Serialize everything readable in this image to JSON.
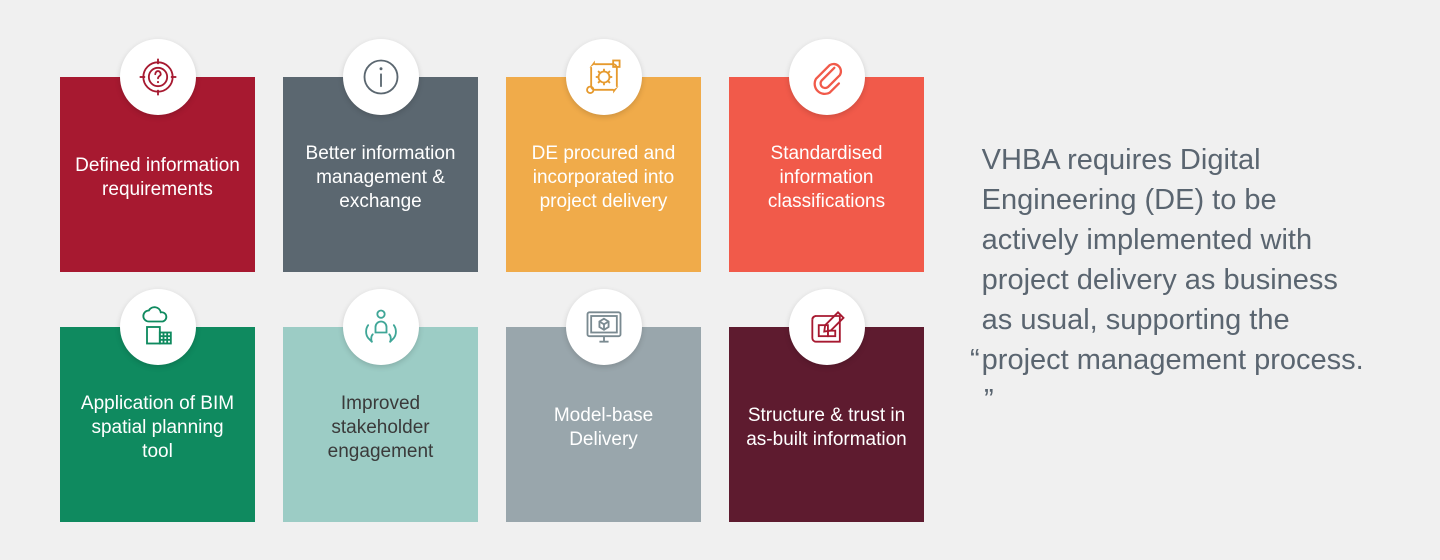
{
  "background_color": "#f0f0f0",
  "cards": [
    {
      "label": "Defined information requirements",
      "bg": "#a71930",
      "text": "#ffffff",
      "icon": "target-question",
      "icon_color": "#a71930"
    },
    {
      "label": "Better information management & exchange",
      "bg": "#5b6770",
      "text": "#ffffff",
      "icon": "info-circle",
      "icon_color": "#5b6770"
    },
    {
      "label": "DE procured and incorporated into project delivery",
      "bg": "#f0ab4a",
      "text": "#ffffff",
      "icon": "gear-cycle",
      "icon_color": "#e69a2e"
    },
    {
      "label": "Standardised information classifications",
      "bg": "#f15a4a",
      "text": "#ffffff",
      "icon": "paperclip",
      "icon_color": "#f15a4a"
    },
    {
      "label": "Application of BIM spatial planning tool",
      "bg": "#0f8a5f",
      "text": "#ffffff",
      "icon": "bim-cloud",
      "icon_color": "#0f8a5f"
    },
    {
      "label": "Improved stakeholder engagement",
      "bg": "#9cccc5",
      "text": "#3a3a3a",
      "icon": "hands-person",
      "icon_color": "#3fa697"
    },
    {
      "label": "Model-base Delivery",
      "bg": "#99a6ac",
      "text": "#ffffff",
      "icon": "monitor-cube",
      "icon_color": "#7a8a91"
    },
    {
      "label": "Structure & trust in as-built information",
      "bg": "#5e1b2f",
      "text": "#ffffff",
      "icon": "blueprint-pencil",
      "icon_color": "#a71930"
    }
  ],
  "quote": {
    "text": "VHBA requires Digital Engineering (DE) to be actively implemented with project delivery as business as usual, supporting the project management process.",
    "open": "“",
    "close": "”",
    "color": "#5a6570",
    "fontsize": 29
  },
  "layout": {
    "cols": 4,
    "rows": 2,
    "card_size": 195,
    "col_gap": 28,
    "row_gap": 55
  }
}
